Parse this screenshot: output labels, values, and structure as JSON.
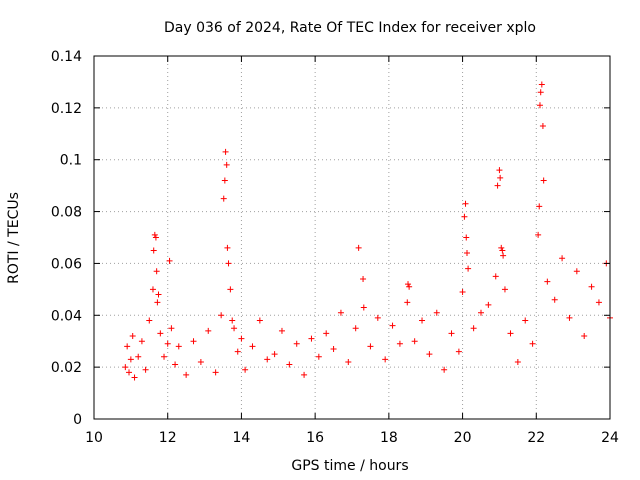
{
  "chart_data": {
    "type": "scatter",
    "title": "Day 036 of 2024, Rate Of TEC Index for receiver xplo",
    "xlabel": "GPS time / hours",
    "ylabel": "ROTI / TECUs",
    "xlim": [
      10,
      24
    ],
    "ylim": [
      0,
      0.14
    ],
    "xticks": [
      10,
      12,
      14,
      16,
      18,
      20,
      22,
      24
    ],
    "xtick_labels": [
      "10",
      "12",
      "14",
      "16",
      "18",
      "20",
      "22",
      "24"
    ],
    "yticks": [
      0,
      0.02,
      0.04,
      0.06,
      0.08,
      0.1,
      0.12,
      0.14
    ],
    "ytick_labels": [
      "0",
      "0.02",
      "0.04",
      "0.06",
      "0.08",
      "0.1",
      "0.12",
      "0.14"
    ],
    "grid": true,
    "marker": "+",
    "series": [
      {
        "name": "ROTI",
        "color": "#ff0000",
        "x": [
          10.85,
          10.9,
          10.95,
          11.0,
          11.05,
          11.1,
          11.2,
          11.3,
          11.4,
          11.5,
          11.6,
          11.62,
          11.65,
          11.68,
          11.7,
          11.72,
          11.75,
          11.8,
          11.9,
          12.0,
          12.05,
          12.1,
          12.2,
          12.3,
          12.5,
          12.7,
          12.9,
          13.1,
          13.3,
          13.45,
          13.52,
          13.55,
          13.57,
          13.6,
          13.62,
          13.65,
          13.7,
          13.75,
          13.8,
          13.9,
          14.0,
          14.1,
          14.3,
          14.5,
          14.7,
          14.9,
          15.1,
          15.3,
          15.5,
          15.7,
          15.9,
          16.1,
          16.3,
          16.5,
          16.7,
          16.9,
          17.1,
          17.18,
          17.3,
          17.32,
          17.5,
          17.7,
          17.9,
          18.1,
          18.3,
          18.5,
          18.52,
          18.55,
          18.7,
          18.9,
          19.1,
          19.3,
          19.5,
          19.7,
          19.9,
          20.0,
          20.05,
          20.08,
          20.1,
          20.12,
          20.15,
          20.3,
          20.5,
          20.7,
          20.9,
          20.95,
          21.0,
          21.02,
          21.05,
          21.08,
          21.1,
          21.15,
          21.3,
          21.5,
          21.7,
          21.9,
          22.05,
          22.08,
          22.1,
          22.12,
          22.15,
          22.18,
          22.2,
          22.3,
          22.5,
          22.7,
          22.9,
          23.1,
          23.3,
          23.5,
          23.7,
          23.9,
          24.0
        ],
        "y": [
          0.02,
          0.028,
          0.018,
          0.023,
          0.032,
          0.016,
          0.024,
          0.03,
          0.019,
          0.038,
          0.05,
          0.065,
          0.071,
          0.07,
          0.057,
          0.045,
          0.048,
          0.033,
          0.024,
          0.029,
          0.061,
          0.035,
          0.021,
          0.028,
          0.017,
          0.03,
          0.022,
          0.034,
          0.018,
          0.04,
          0.085,
          0.092,
          0.103,
          0.098,
          0.066,
          0.06,
          0.05,
          0.038,
          0.035,
          0.026,
          0.031,
          0.019,
          0.028,
          0.038,
          0.023,
          0.025,
          0.034,
          0.021,
          0.029,
          0.017,
          0.031,
          0.024,
          0.033,
          0.027,
          0.041,
          0.022,
          0.035,
          0.066,
          0.054,
          0.043,
          0.028,
          0.039,
          0.023,
          0.036,
          0.029,
          0.045,
          0.052,
          0.051,
          0.03,
          0.038,
          0.025,
          0.041,
          0.019,
          0.033,
          0.026,
          0.049,
          0.078,
          0.083,
          0.07,
          0.064,
          0.058,
          0.035,
          0.041,
          0.044,
          0.055,
          0.09,
          0.096,
          0.093,
          0.066,
          0.065,
          0.063,
          0.05,
          0.033,
          0.022,
          0.038,
          0.029,
          0.071,
          0.082,
          0.121,
          0.126,
          0.129,
          0.113,
          0.092,
          0.053,
          0.046,
          0.062,
          0.039,
          0.057,
          0.032,
          0.051,
          0.045,
          0.06,
          0.039
        ]
      }
    ]
  }
}
